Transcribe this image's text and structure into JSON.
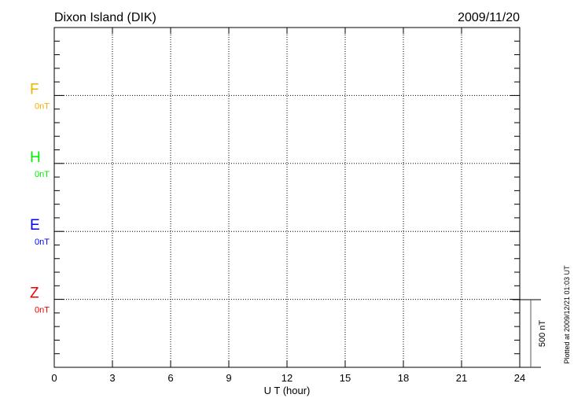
{
  "chart_data": {
    "type": "line",
    "title": "Dixon Island (DIK)",
    "date": "2009/11/20",
    "xlabel": "U T (hour)",
    "xlim": [
      0,
      24
    ],
    "xticks": [
      "0",
      "3",
      "6",
      "9",
      "12",
      "15",
      "18",
      "21",
      "24"
    ],
    "grid": true,
    "series": [
      {
        "name": "F",
        "baseline_label": "0nT",
        "color": "#f0b000",
        "values": []
      },
      {
        "name": "H",
        "baseline_label": "0nT",
        "color": "#00ee00",
        "values": []
      },
      {
        "name": "E",
        "baseline_label": "0nT",
        "color": "#0000ff",
        "values": []
      },
      {
        "name": "Z",
        "baseline_label": "0nT",
        "color": "#ee0000",
        "values": []
      }
    ],
    "scale_bar_label": "500 nT",
    "plotted_note": "Plotted at 2009/12/21 01:03 UT"
  }
}
